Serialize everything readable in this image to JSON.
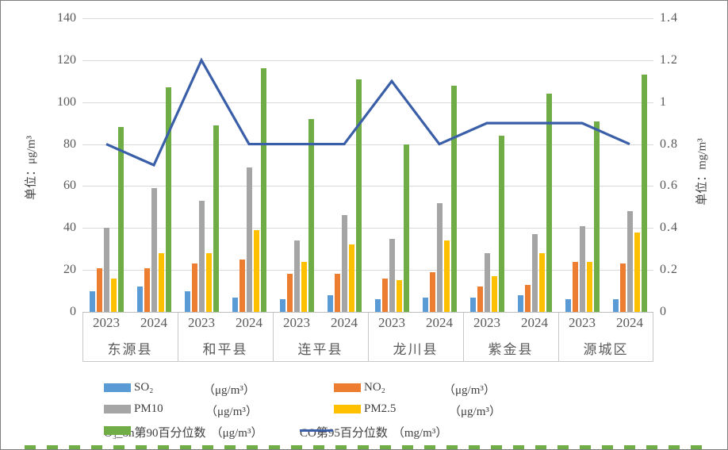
{
  "chart_data": {
    "type": "bar+line",
    "title": "",
    "counties": [
      "东源县",
      "和平县",
      "连平县",
      "龙川县",
      "紫金县",
      "源城区"
    ],
    "years": [
      "2023",
      "2024"
    ],
    "group_labels": [
      "东源县 2023",
      "东源县 2024",
      "和平县 2023",
      "和平县 2024",
      "连平县 2023",
      "连平县 2024",
      "龙川县 2023",
      "龙川县 2024",
      "紫金县 2023",
      "紫金县 2024",
      "源城区 2023",
      "源城区 2024"
    ],
    "left_axis": {
      "label": "单位：μg/m³",
      "ticks": [
        "0",
        "20",
        "40",
        "60",
        "80",
        "100",
        "120",
        "140"
      ],
      "range": [
        0,
        140
      ],
      "grid": true
    },
    "right_axis": {
      "label": "单位：mg/m³",
      "ticks": [
        "0",
        "0.2",
        "0.4",
        "0.6",
        "0.8",
        "1",
        "1.2",
        "1.4"
      ],
      "range": [
        0,
        1.4
      ]
    },
    "series": [
      {
        "name": "SO₂",
        "unit": "（μg/m³）",
        "type": "bar",
        "axis": "left",
        "color": "#5B9BD5",
        "values": [
          10,
          12,
          10,
          7,
          6,
          8,
          6,
          7,
          7,
          8,
          6,
          6
        ]
      },
      {
        "name": "NO₂",
        "unit": "（μg/m³）",
        "type": "bar",
        "axis": "left",
        "color": "#ED7D31",
        "values": [
          21,
          21,
          23,
          25,
          18,
          18,
          16,
          19,
          12,
          13,
          24,
          23
        ]
      },
      {
        "name": "PM10",
        "unit": "（μg/m³）",
        "type": "bar",
        "axis": "left",
        "color": "#A5A5A5",
        "values": [
          40,
          59,
          53,
          69,
          34,
          46,
          35,
          52,
          28,
          37,
          41,
          48
        ]
      },
      {
        "name": "PM2.5",
        "unit": "（μg/m³）",
        "type": "bar",
        "axis": "left",
        "color": "#FFC000",
        "values": [
          16,
          28,
          28,
          39,
          24,
          32,
          15,
          34,
          17,
          28,
          24,
          38
        ]
      },
      {
        "name": "O₃_8h第90百分位数",
        "unit": "（μg/m³）",
        "type": "bar",
        "axis": "left",
        "color": "#70AD47",
        "values": [
          88,
          107,
          89,
          116,
          92,
          111,
          80,
          108,
          84,
          104,
          91,
          113
        ]
      },
      {
        "name": "CO第95百分位数",
        "unit": "（mg/m³）",
        "type": "line",
        "axis": "right",
        "color": "#3A5FA8",
        "values": [
          0.8,
          0.7,
          1.2,
          0.8,
          0.8,
          0.8,
          1.1,
          0.8,
          0.9,
          0.9,
          0.9,
          0.8
        ]
      }
    ],
    "legend_position": "bottom"
  }
}
